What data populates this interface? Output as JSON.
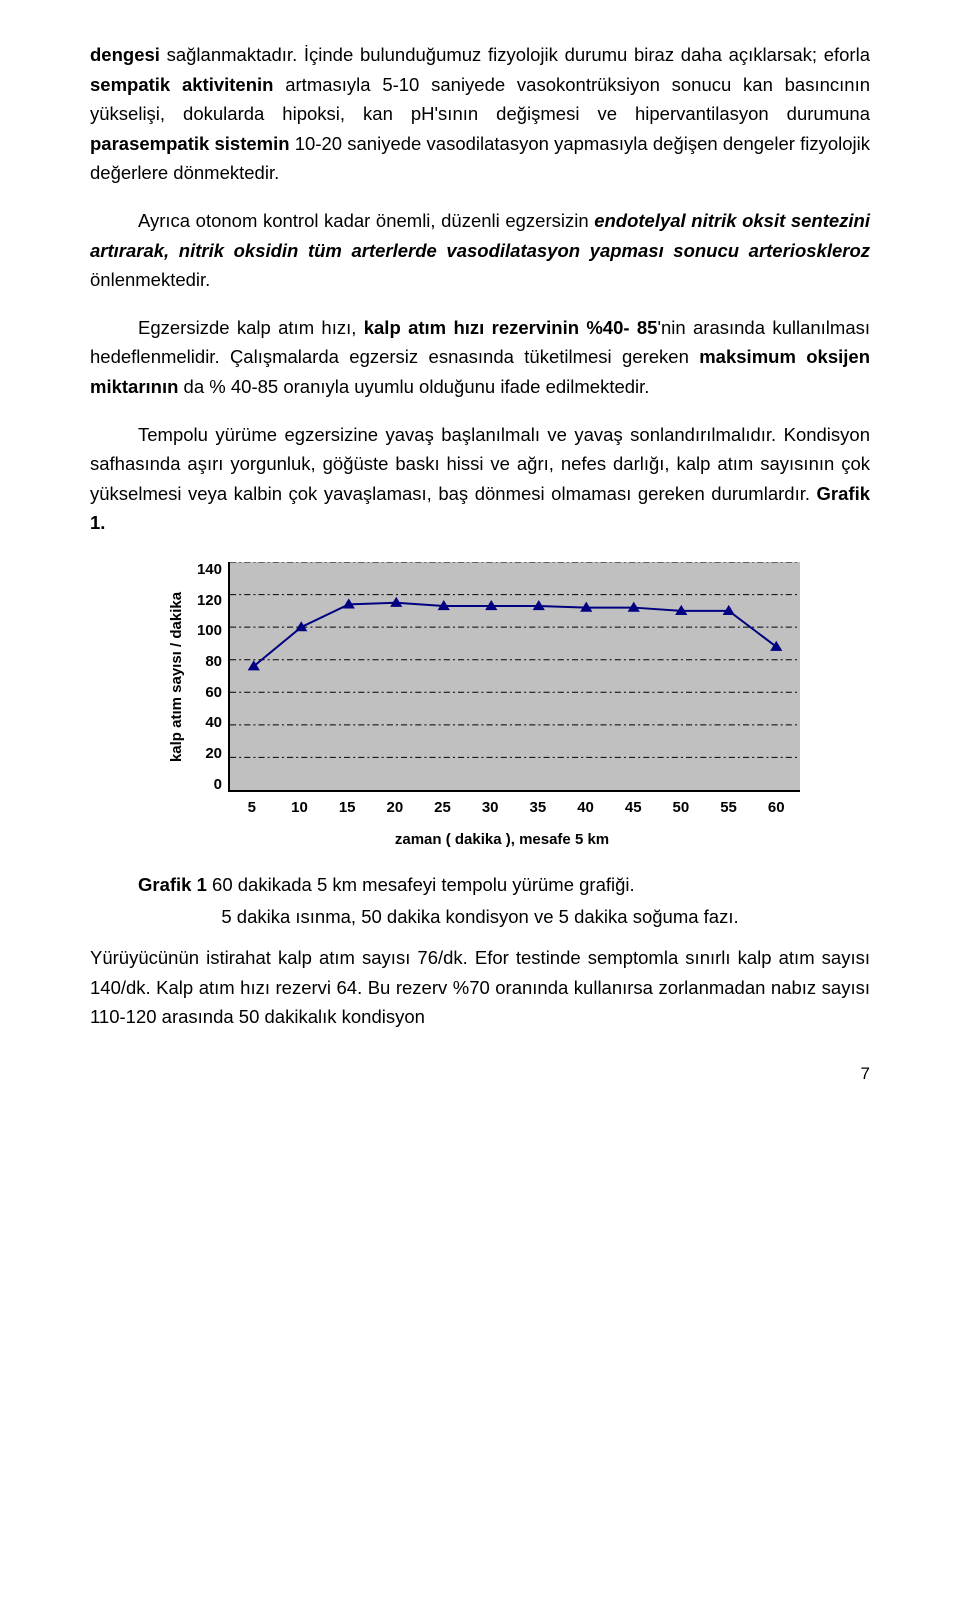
{
  "para1_parts": [
    {
      "text": "dengesi",
      "bold": true
    },
    {
      "text": " sağlanmaktadır. İçinde bulunduğumuz fizyolojik durumu biraz daha açıklarsak; eforla ",
      "bold": false
    },
    {
      "text": "sempatik aktivitenin",
      "bold": true
    },
    {
      "text": " artmasıyla 5-10 saniyede vasokontrüksiyon sonucu kan basıncının yükselişi, dokularda hipoksi, kan pH'sının değişmesi ve hipervantilasyon durumuna ",
      "bold": false
    },
    {
      "text": "parasempatik sistemin",
      "bold": true
    },
    {
      "text": " 10-20 saniyede vasodilatasyon yapmasıyla değişen dengeler fizyolojik değerlere dönmektedir.",
      "bold": false
    }
  ],
  "para2_parts": [
    {
      "text": "Ayrıca otonom kontrol kadar önemli, düzenli egzersizin "
    },
    {
      "text": "endotelyal nitrik oksit sentezini ",
      "italicbold": true
    },
    {
      "text": " "
    },
    {
      "text": "artırarak, nitrik oksidin ",
      "italicbold": true
    },
    {
      "text": " "
    },
    {
      "text": "tüm arterlerde ",
      "italicbold": true
    },
    {
      "text": " "
    },
    {
      "text": "vasodilatasyon yapması sonucu  arterioskleroz",
      "italicbold": true
    },
    {
      "text": " önlenmektedir."
    }
  ],
  "para3_parts": [
    {
      "text": "Egzersizde kalp atım hızı, "
    },
    {
      "text": "kalp atım hızı rezervinin   %40- 85",
      "bold": true
    },
    {
      "text": "'nin arasında kullanılması hedeflenmelidir. Çalışmalarda egzersiz esnasında tüketilmesi gereken "
    },
    {
      "text": "maksimum oksijen miktarının",
      "bold": true
    },
    {
      "text": " da    % 40-85 oranıyla uyumlu olduğunu ifade  edilmektedir."
    }
  ],
  "para4_parts": [
    {
      "text": "Tempolu yürüme egzersizine yavaş başlanılmalı ve yavaş sonlandırılmalıdır. Kondisyon safhasında aşırı yorgunluk, göğüste baskı hissi ve ağrı, nefes darlığı, kalp atım  sayısının çok yükselmesi veya  kalbin  çok yavaşlaması, baş dönmesi olmaması gereken durumlardır. "
    },
    {
      "text": "Grafik 1.",
      "bold": true
    }
  ],
  "caption_parts": [
    {
      "text": "Grafik 1",
      "bold": true
    },
    {
      "text": "  60 dakikada 5 km mesafeyi tempolu yürüme grafiği."
    }
  ],
  "caption2": "5 dakika ısınma, 50 dakika kondisyon ve 5 dakika soğuma fazı.",
  "para5": "Yürüyücünün istirahat kalp atım sayısı 76/dk. Efor testinde semptomla sınırlı kalp atım sayısı 140/dk. Kalp atım hızı rezervi 64. Bu rezerv %70 oranında kullanırsa  zorlanmadan nabız sayısı 110-120 arasında 50 dakikalık kondisyon",
  "page_num": "7",
  "chart": {
    "type": "line",
    "background_color": "#c0c0c0",
    "grid_color": "#000000",
    "line_color": "#000080",
    "marker_fill": "#000080",
    "marker_size": 6,
    "line_width": 2,
    "ylabel": "kalp atım sayısı / dakika",
    "xlabel": "zaman ( dakika ), mesafe 5 km",
    "ylim": [
      0,
      140
    ],
    "ytick_step": 20,
    "yticks": [
      140,
      120,
      100,
      80,
      60,
      40,
      20,
      0
    ],
    "xticks": [
      5,
      10,
      15,
      20,
      25,
      30,
      35,
      40,
      45,
      50,
      55,
      60
    ],
    "x": [
      5,
      10,
      15,
      20,
      25,
      30,
      35,
      40,
      45,
      50,
      55,
      60
    ],
    "y": [
      76,
      100,
      114,
      115,
      113,
      113,
      113,
      112,
      112,
      110,
      110,
      88
    ]
  }
}
